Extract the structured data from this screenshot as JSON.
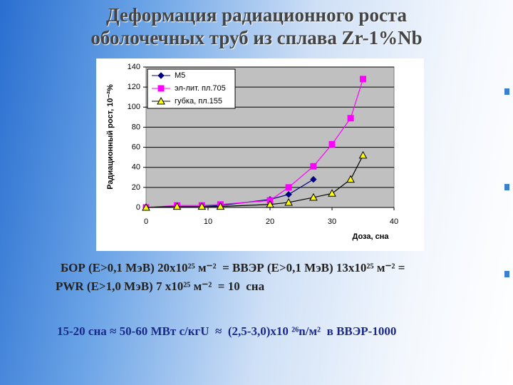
{
  "slide": {
    "title_lines": [
      "Деформация радиационного роста",
      "оболочечных труб из сплава Zr-1%Nb"
    ],
    "text_lines": [
      "БОР (Е>0,1 МэВ) 20х10²⁵ м⁻²  = ВВЭР (Е>0,1 МэВ) 13х10²⁵ м⁻² =",
      "PWR (Е>1,0 МэВ) 7 х10²⁵ м⁻²  = 10  сна"
    ],
    "note": "15-20 сна ≈ 50-60 МВт с/кгU  ≈  (2,5-3,0)х10 ²⁶n/м²  в ВВЭР-1000"
  },
  "chart_data": {
    "type": "line",
    "x_label": "Доза, сна",
    "y_label": "Радиационный рост, 10⁻²%",
    "xlim": [
      0,
      40
    ],
    "xticks": [
      0,
      10,
      20,
      30,
      40
    ],
    "ylim": [
      0,
      140
    ],
    "yticks": [
      0,
      20,
      40,
      60,
      80,
      100,
      120,
      140
    ],
    "grid": true,
    "legend": "top-left",
    "series": [
      {
        "name": "М5",
        "color": "#000080",
        "line_color": "#000080",
        "marker": "diamond",
        "x": [
          0,
          5,
          9,
          12,
          20,
          23,
          27
        ],
        "values": [
          0,
          1,
          1,
          2,
          8,
          13,
          28
        ]
      },
      {
        "name": "эл-лит. пл.705",
        "color": "#ff00ff",
        "line_color": "#ff00ff",
        "marker": "square",
        "x": [
          0,
          5,
          9,
          12,
          20,
          23,
          27,
          30,
          33,
          35
        ],
        "values": [
          0,
          2,
          2,
          3,
          7,
          20,
          41,
          63,
          89,
          128
        ]
      },
      {
        "name": "губка, пл.155",
        "color": "#ffff00",
        "line_color": "#000000",
        "marker": "triangle",
        "x": [
          0,
          5,
          9,
          12,
          20,
          23,
          27,
          30,
          33,
          35
        ],
        "values": [
          0,
          1,
          1,
          1,
          3,
          5,
          10,
          14,
          28,
          52
        ]
      }
    ]
  }
}
